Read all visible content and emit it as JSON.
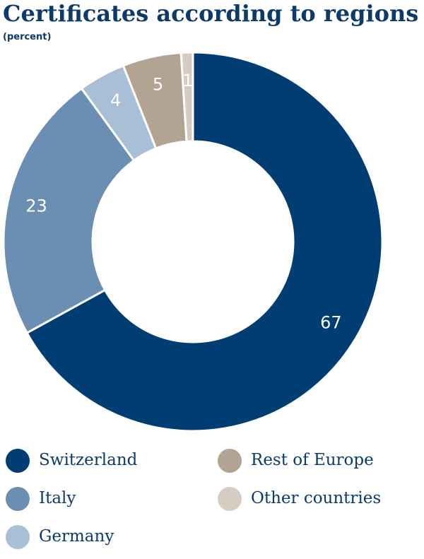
{
  "chart_data": {
    "type": "donut",
    "title": "Certificates according to regions",
    "subtitle": "(percent)",
    "categories": [
      "Switzerland",
      "Italy",
      "Germany",
      "Rest of Europe",
      "Other countries"
    ],
    "values": [
      67,
      23,
      4,
      5,
      1
    ],
    "colors": [
      "#003d73",
      "#6a8fb2",
      "#a9bfd6",
      "#b3a393",
      "#d6ccc2"
    ]
  }
}
